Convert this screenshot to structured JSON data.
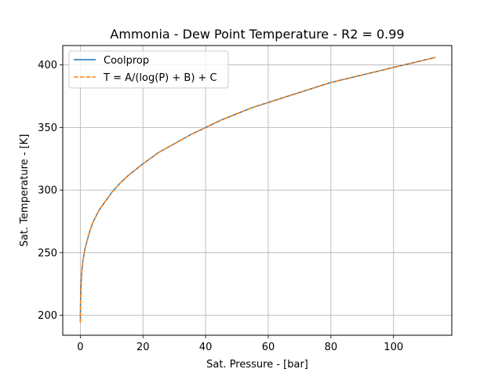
{
  "chart_data": {
    "type": "line",
    "title": "Ammonia - Dew Point Temperature - R2 = 0.99",
    "xlabel": "Sat. Pressure - [bar]",
    "ylabel": "Sat. Temperature - [K]",
    "xlim": [
      -5.6,
      118.6
    ],
    "ylim": [
      184,
      415.5
    ],
    "xticks": [
      0,
      20,
      40,
      60,
      80,
      100
    ],
    "yticks": [
      200,
      250,
      300,
      350,
      400
    ],
    "xtick_labels": [
      "0",
      "20",
      "40",
      "60",
      "80",
      "100"
    ],
    "ytick_labels": [
      "200",
      "250",
      "300",
      "350",
      "400"
    ],
    "grid": true,
    "legend_position": "top-left",
    "series": [
      {
        "name": "Coolprop",
        "color": "#1f77b4",
        "style": "solid",
        "x": [
          0.02,
          0.08,
          0.2,
          0.4,
          0.6,
          0.8,
          1.0,
          1.5,
          2.0,
          3.0,
          4.0,
          5.0,
          6.0,
          8.0,
          10.0,
          12.5,
          15.0,
          17.5,
          20.0,
          25.0,
          30.0,
          35.0,
          40.0,
          45.0,
          50.0,
          55.0,
          60.0,
          65.0,
          70.0,
          75.0,
          80.0,
          85.0,
          90.0,
          95.0,
          100.0,
          105.0,
          110.0,
          113.4
        ],
        "y": [
          195,
          210,
          222,
          232,
          238,
          243,
          246,
          253,
          258,
          267,
          274,
          279,
          284,
          291,
          298,
          305,
          311,
          316,
          321,
          330,
          337,
          344,
          350,
          356,
          361,
          366,
          370,
          374,
          378,
          382,
          386,
          389,
          392,
          395,
          398,
          401,
          404,
          406
        ]
      },
      {
        "name": "T = A/(log(P) + B) + C",
        "color": "#ff7f0e",
        "style": "dashed",
        "x": [
          0.02,
          0.08,
          0.2,
          0.4,
          0.6,
          0.8,
          1.0,
          1.5,
          2.0,
          3.0,
          4.0,
          5.0,
          6.0,
          8.0,
          10.0,
          12.5,
          15.0,
          17.5,
          20.0,
          25.0,
          30.0,
          35.0,
          40.0,
          45.0,
          50.0,
          55.0,
          60.0,
          65.0,
          70.0,
          75.0,
          80.0,
          85.0,
          90.0,
          95.0,
          100.0,
          105.0,
          110.0,
          113.4
        ],
        "y": [
          194,
          210,
          222,
          232,
          238,
          243,
          246,
          253,
          258,
          267,
          274,
          279,
          284,
          291,
          298,
          305,
          311,
          316,
          321,
          330,
          337,
          344,
          350,
          356,
          361,
          366,
          370,
          374,
          378,
          382,
          386,
          389,
          392,
          395,
          398,
          401,
          404,
          406
        ]
      }
    ]
  }
}
